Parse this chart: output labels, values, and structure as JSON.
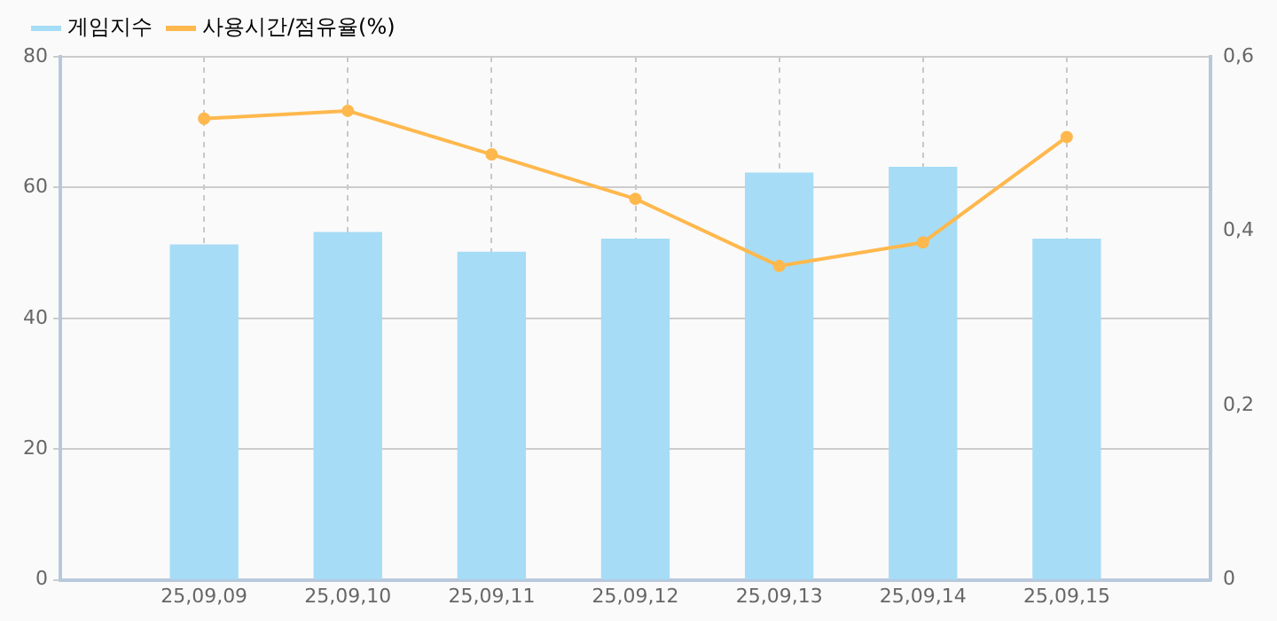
{
  "chart_data": {
    "type": "bar",
    "categories": [
      "25,09,09",
      "25,09,10",
      "25,09,11",
      "25,09,12",
      "25,09,13",
      "25,09,14",
      "25,09,15"
    ],
    "series": [
      {
        "name": "게임지수",
        "color": "#a6dcf5",
        "values": [
          51.2,
          53.1,
          50.1,
          52.1,
          62.2,
          63.1,
          52.1
        ]
      },
      {
        "name": "사용시간/점유율(%)",
        "type": "line",
        "axis": "y2",
        "color": "#ffb84d",
        "values": [
          0.529,
          0.538,
          0.488,
          0.437,
          0.36,
          0.387,
          0.508
        ]
      }
    ],
    "ylim": [
      0,
      80
    ],
    "yticks": [
      0,
      20,
      40,
      60,
      80
    ],
    "y2lim": [
      0,
      0.6
    ],
    "y2ticks": [
      {
        "value": 0,
        "label": "0"
      },
      {
        "value": 0.2,
        "label": "0,2"
      },
      {
        "value": 0.4,
        "label": "0,4"
      },
      {
        "value": 0.6,
        "label": "0,6"
      }
    ],
    "grid": true,
    "legend": "top left",
    "marker": "circle"
  }
}
